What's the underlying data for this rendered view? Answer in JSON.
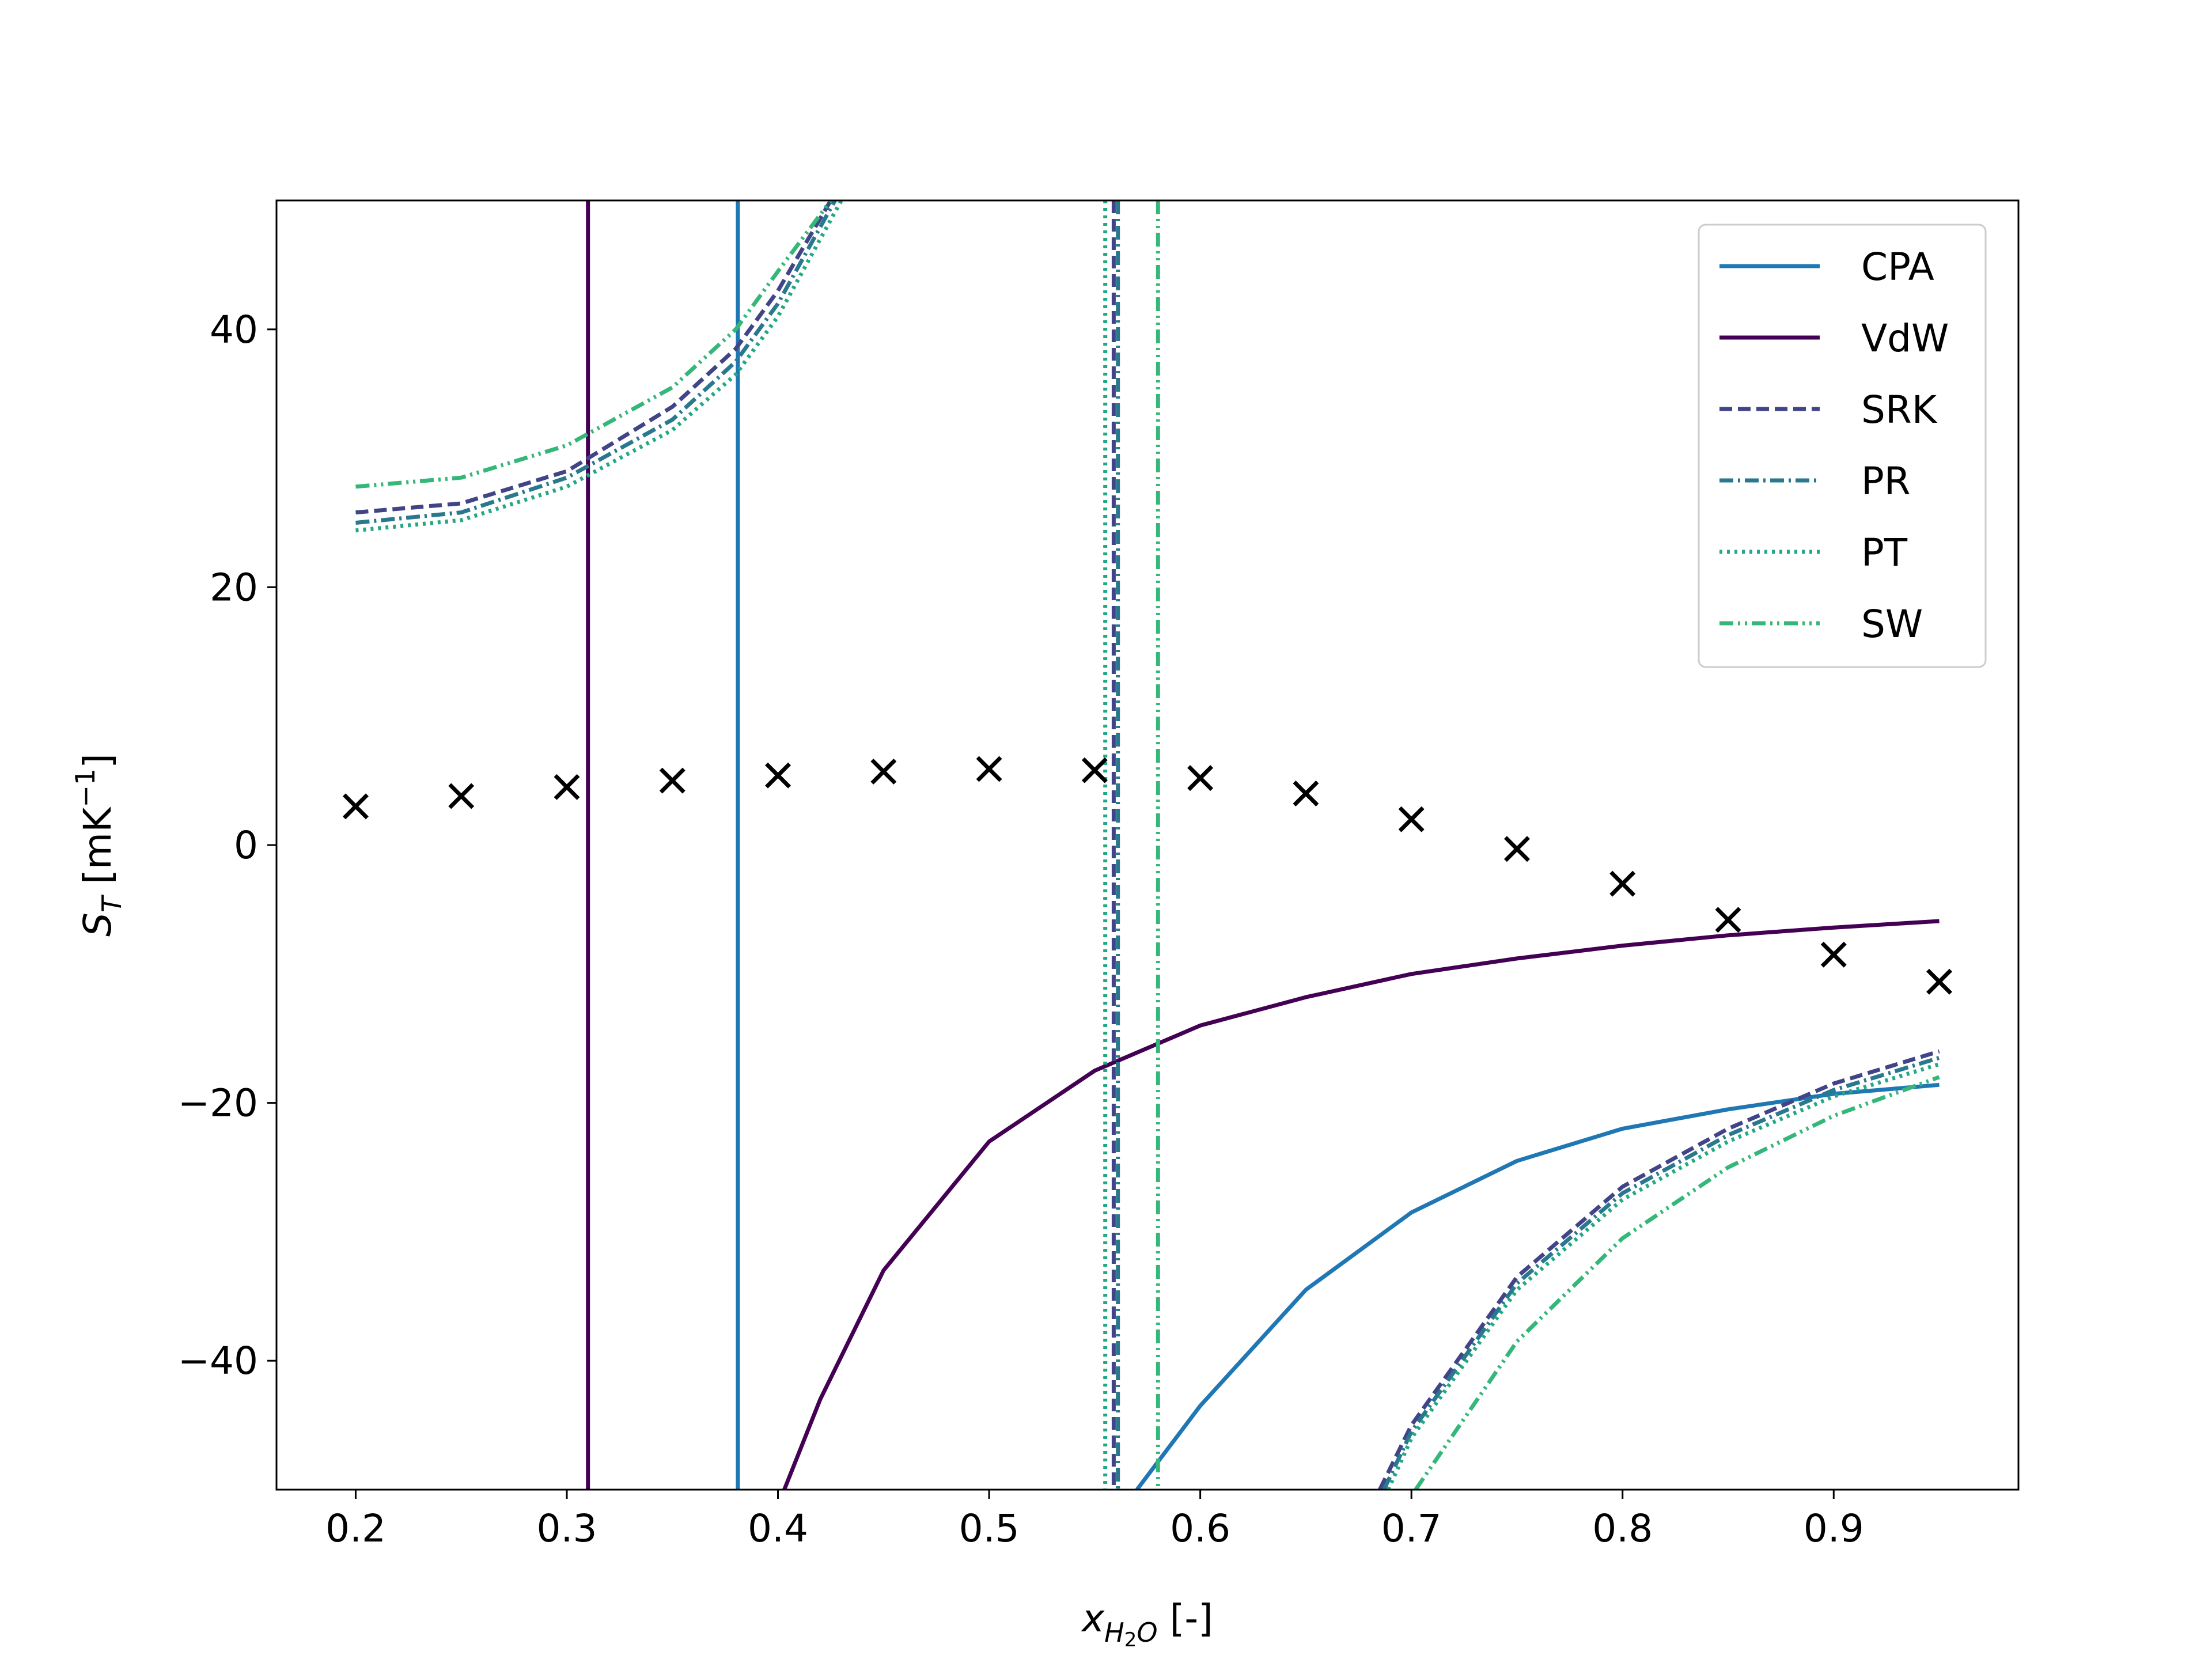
{
  "chart_data": {
    "type": "line",
    "xlabel": {
      "main": "x",
      "sub": "H",
      "sub2": "2",
      "sub3": "O",
      "suffix": " [-]"
    },
    "ylabel": {
      "main": "S",
      "sub": "T",
      "prefix": " [mK",
      "sup": "−1",
      "suffix": "]"
    },
    "xlim": [
      0.1625,
      0.9875
    ],
    "ylim": [
      -50,
      50
    ],
    "xticks": [
      {
        "value": 0.2,
        "label": "0.2"
      },
      {
        "value": 0.3,
        "label": "0.3"
      },
      {
        "value": 0.4,
        "label": "0.4"
      },
      {
        "value": 0.5,
        "label": "0.5"
      },
      {
        "value": 0.6,
        "label": "0.6"
      },
      {
        "value": 0.7,
        "label": "0.7"
      },
      {
        "value": 0.8,
        "label": "0.8"
      },
      {
        "value": 0.9,
        "label": "0.9"
      }
    ],
    "yticks": [
      {
        "value": -40,
        "label": "−40"
      },
      {
        "value": -20,
        "label": "−20"
      },
      {
        "value": 0,
        "label": "0"
      },
      {
        "value": 20,
        "label": "20"
      },
      {
        "value": 40,
        "label": "40"
      }
    ],
    "grid": false,
    "legend_position": "top-right",
    "series": [
      {
        "name": "CPA",
        "color": "#1f77b4",
        "dash": "solid",
        "asymptote": 0.381,
        "segments": [
          [
            [
              0.381,
              50
            ],
            [
              0.381,
              -50
            ]
          ],
          [
            [
              0.57,
              -50
            ],
            [
              0.6,
              -43.5
            ],
            [
              0.65,
              -34.5
            ],
            [
              0.7,
              -28.5
            ],
            [
              0.75,
              -24.5
            ],
            [
              0.8,
              -22
            ],
            [
              0.85,
              -20.5
            ],
            [
              0.9,
              -19.3
            ],
            [
              0.95,
              -18.6
            ]
          ]
        ]
      },
      {
        "name": "VdW",
        "color": "#440154",
        "dash": "solid",
        "asymptote": 0.31,
        "segments": [
          [
            [
              0.31,
              50
            ],
            [
              0.31,
              -50
            ]
          ],
          [
            [
              0.403,
              -50
            ],
            [
              0.42,
              -43
            ],
            [
              0.45,
              -33
            ],
            [
              0.5,
              -23
            ],
            [
              0.55,
              -17.5
            ],
            [
              0.6,
              -14
            ],
            [
              0.65,
              -11.8
            ],
            [
              0.7,
              -10
            ],
            [
              0.75,
              -8.8
            ],
            [
              0.8,
              -7.8
            ],
            [
              0.85,
              -7
            ],
            [
              0.9,
              -6.4
            ],
            [
              0.95,
              -5.9
            ]
          ]
        ]
      },
      {
        "name": "SRK",
        "color": "#414487",
        "dash": "dashed",
        "asymptote": 0.559,
        "segments": [
          [
            [
              0.2,
              25.8
            ],
            [
              0.25,
              26.5
            ],
            [
              0.3,
              29
            ],
            [
              0.35,
              34
            ],
            [
              0.38,
              38.5
            ],
            [
              0.4,
              43
            ],
            [
              0.425,
              50
            ]
          ],
          [
            [
              0.559,
              50
            ],
            [
              0.559,
              -50
            ]
          ],
          [
            [
              0.685,
              -50
            ],
            [
              0.7,
              -45
            ],
            [
              0.75,
              -33.5
            ],
            [
              0.8,
              -26.5
            ],
            [
              0.85,
              -22
            ],
            [
              0.9,
              -18.5
            ],
            [
              0.95,
              -16
            ]
          ]
        ]
      },
      {
        "name": "PR",
        "color": "#2a788e",
        "dash": "dashdot",
        "asymptote": 0.561,
        "segments": [
          [
            [
              0.2,
              25
            ],
            [
              0.25,
              25.8
            ],
            [
              0.3,
              28.5
            ],
            [
              0.35,
              33
            ],
            [
              0.38,
              37.5
            ],
            [
              0.4,
              42
            ],
            [
              0.427,
              50
            ]
          ],
          [
            [
              0.561,
              50
            ],
            [
              0.561,
              -50
            ]
          ],
          [
            [
              0.687,
              -50
            ],
            [
              0.7,
              -45.5
            ],
            [
              0.75,
              -34
            ],
            [
              0.8,
              -27
            ],
            [
              0.85,
              -22.5
            ],
            [
              0.9,
              -19
            ],
            [
              0.95,
              -16.5
            ]
          ]
        ]
      },
      {
        "name": "PT",
        "color": "#22a884",
        "dash": "dotted",
        "asymptote": 0.555,
        "segments": [
          [
            [
              0.2,
              24.4
            ],
            [
              0.25,
              25.2
            ],
            [
              0.3,
              27.8
            ],
            [
              0.35,
              32.2
            ],
            [
              0.38,
              36.5
            ],
            [
              0.4,
              41
            ],
            [
              0.43,
              50
            ]
          ],
          [
            [
              0.555,
              50
            ],
            [
              0.555,
              -50
            ]
          ],
          [
            [
              0.689,
              -50
            ],
            [
              0.7,
              -46
            ],
            [
              0.75,
              -34.5
            ],
            [
              0.8,
              -27.5
            ],
            [
              0.85,
              -23
            ],
            [
              0.9,
              -19.5
            ],
            [
              0.95,
              -17
            ]
          ]
        ]
      },
      {
        "name": "SW",
        "color": "#35b779",
        "dash": "dashdotdot",
        "asymptote": 0.58,
        "segments": [
          [
            [
              0.2,
              27.8
            ],
            [
              0.25,
              28.5
            ],
            [
              0.3,
              31
            ],
            [
              0.35,
              35.5
            ],
            [
              0.38,
              40
            ],
            [
              0.4,
              44.5
            ],
            [
              0.425,
              50
            ]
          ],
          [
            [
              0.58,
              50
            ],
            [
              0.58,
              -50
            ]
          ],
          [
            [
              0.702,
              -50
            ],
            [
              0.75,
              -38.5
            ],
            [
              0.8,
              -30.5
            ],
            [
              0.85,
              -25
            ],
            [
              0.9,
              -21
            ],
            [
              0.95,
              -18
            ]
          ]
        ]
      }
    ],
    "measurements": {
      "marker": "x",
      "color": "#000000",
      "x": [
        0.2,
        0.25,
        0.3,
        0.35,
        0.4,
        0.45,
        0.5,
        0.55,
        0.6,
        0.65,
        0.7,
        0.75,
        0.8,
        0.85,
        0.9,
        0.95
      ],
      "y": [
        3.0,
        3.8,
        4.5,
        5.0,
        5.4,
        5.7,
        5.9,
        5.8,
        5.2,
        4.0,
        2.0,
        -0.3,
        -3.0,
        -5.8,
        -8.5,
        -10.6
      ]
    }
  }
}
